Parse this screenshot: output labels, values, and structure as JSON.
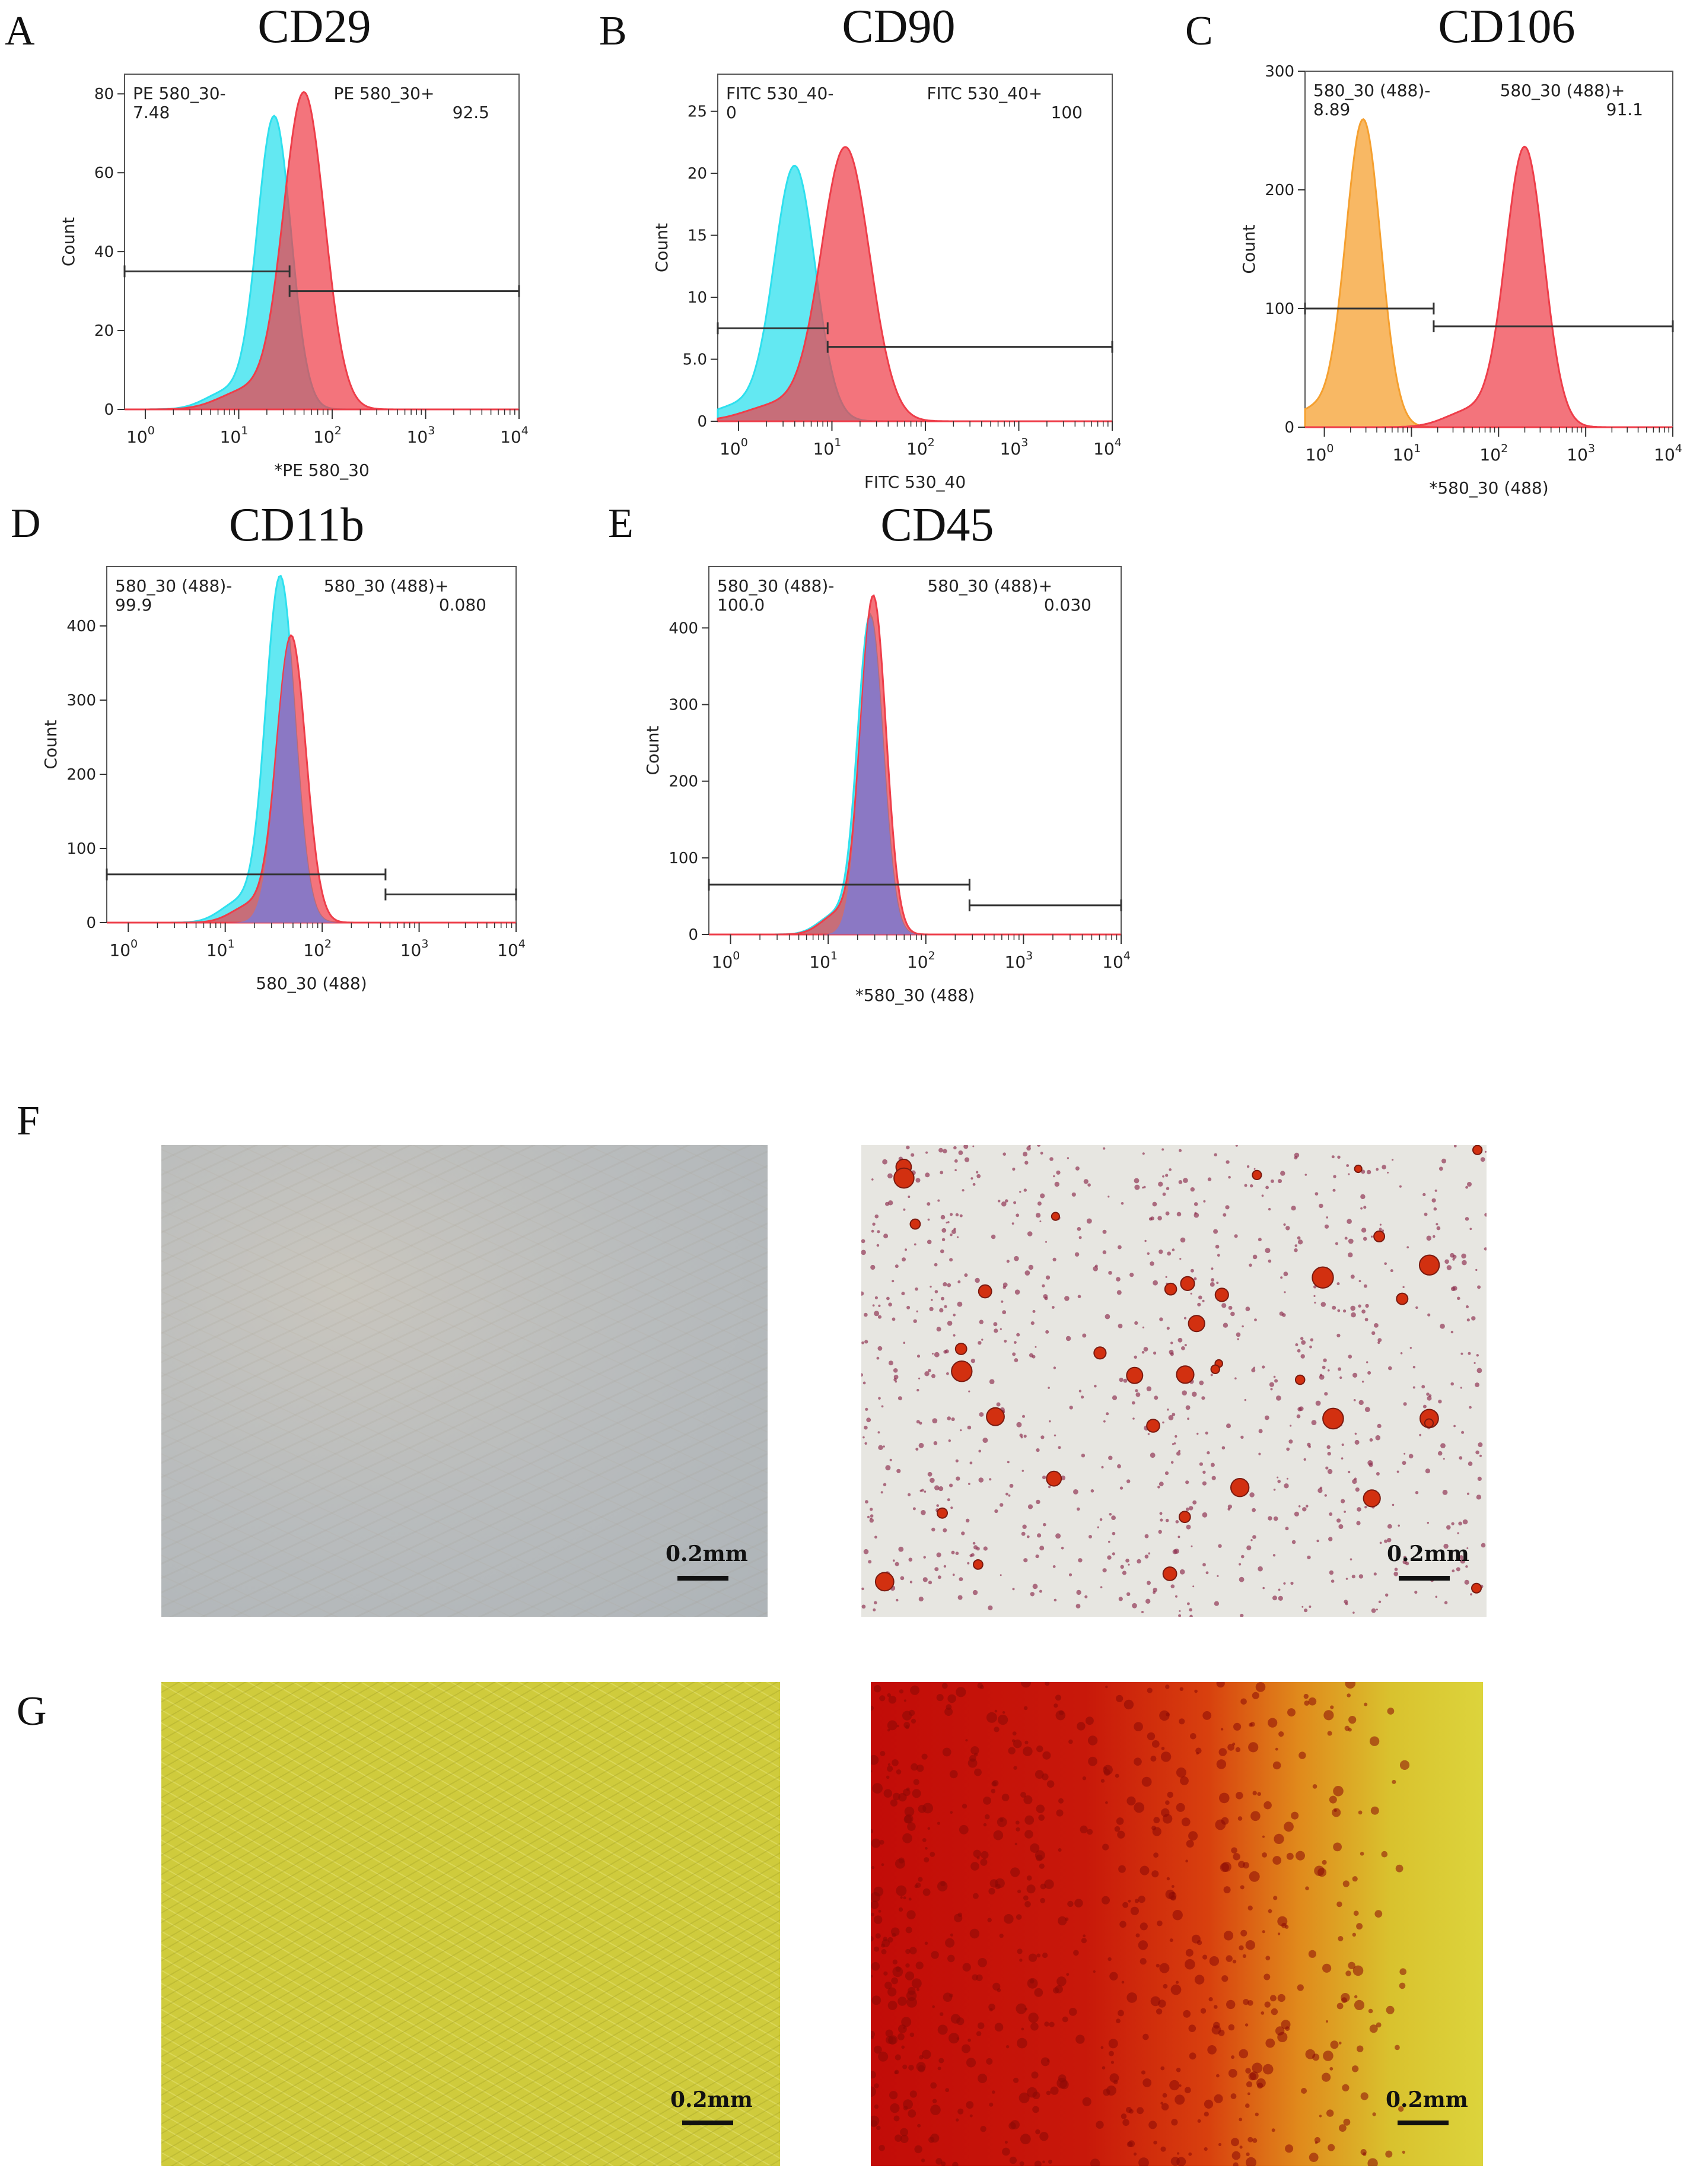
{
  "panels": [
    {
      "letter": "A",
      "title": "CD29",
      "neg_label": "PE 580_30-",
      "neg_value": "7.48",
      "pos_label": "PE 580_30+",
      "pos_value": "92.5",
      "xlabel": "*PE 580_30",
      "ylabel": "Count",
      "yticks": [
        "0",
        "20",
        "40",
        "60",
        "80"
      ]
    },
    {
      "letter": "B",
      "title": "CD90",
      "neg_label": "FITC 530_40-",
      "neg_value": "0",
      "pos_label": "FITC 530_40+",
      "pos_value": "100",
      "xlabel": "FITC 530_40",
      "ylabel": "Count",
      "yticks": [
        "0",
        "5.0",
        "10",
        "15",
        "20",
        "25"
      ]
    },
    {
      "letter": "C",
      "title": "CD106",
      "neg_label": "580_30 (488)-",
      "neg_value": "8.89",
      "pos_label": "580_30 (488)+",
      "pos_value": "91.1",
      "xlabel": "*580_30 (488)",
      "ylabel": "Count",
      "yticks": [
        "0",
        "100",
        "200",
        "300"
      ]
    },
    {
      "letter": "D",
      "title": "CD11b",
      "neg_label": "580_30 (488)-",
      "neg_value": "99.9",
      "pos_label": "580_30 (488)+",
      "pos_value": "0.080",
      "xlabel": "580_30 (488)",
      "ylabel": "Count",
      "yticks": [
        "0",
        "100",
        "200",
        "300",
        "400"
      ]
    },
    {
      "letter": "E",
      "title": "CD45",
      "neg_label": "580_30 (488)-",
      "neg_value": "100.0",
      "pos_label": "580_30 (488)+",
      "pos_value": "0.030",
      "xlabel": "*580_30 (488)",
      "ylabel": "Count",
      "yticks": [
        "0",
        "100",
        "200",
        "300",
        "400"
      ]
    }
  ],
  "xticks": [
    "10",
    "10",
    "10",
    "10",
    "10"
  ],
  "xtick_exponents": [
    "0",
    "1",
    "2",
    "3",
    "4"
  ],
  "figure_F": {
    "letter": "F",
    "scale_left": "0.2mm",
    "scale_right": "0.2mm"
  },
  "figure_G": {
    "letter": "G",
    "scale_left": "0.2mm",
    "scale_right": "0.2mm"
  },
  "colors": {
    "control_cyan": "#2fe0ee",
    "control_orange": "#f5a030",
    "stained_red": "#ee3e4a",
    "overlap": "#8878c8"
  },
  "chart_data": [
    {
      "type": "area",
      "title": "CD29",
      "xscale": "log",
      "xlim": [
        0.6,
        10000
      ],
      "ylim": [
        0,
        85
      ],
      "xlabel": "*PE 580_30",
      "ylabel": "Count",
      "series": [
        {
          "name": "",
          "color": "#2fe0ee",
          "peak_x": 24,
          "peak_y": 74,
          "spread_decades": 0.18
        },
        {
          "name": "",
          "color": "#ee3e4a",
          "peak_x": 50,
          "peak_y": 80,
          "spread_decades": 0.22
        }
      ],
      "gates": [
        {
          "name": "PE 580_30-",
          "x": [
            0.6,
            35
          ],
          "y": 35,
          "percent": 7.48
        },
        {
          "name": "PE 580_30+",
          "x": [
            35,
            10000
          ],
          "y": 30,
          "percent": 92.5
        }
      ]
    },
    {
      "type": "area",
      "title": "CD90",
      "xscale": "log",
      "xlim": [
        0.6,
        10000
      ],
      "ylim": [
        0,
        28
      ],
      "xlabel": "FITC 530_40",
      "ylabel": "Count",
      "series": [
        {
          "name": "",
          "color": "#2fe0ee",
          "peak_x": 4,
          "peak_y": 20.5,
          "spread_decades": 0.22
        },
        {
          "name": "",
          "color": "#ee3e4a",
          "peak_x": 14,
          "peak_y": 22,
          "spread_decades": 0.26
        }
      ],
      "gates": [
        {
          "name": "FITC 530_40-",
          "x": [
            0.6,
            9
          ],
          "y": 7.5,
          "percent": 0
        },
        {
          "name": "FITC 530_40+",
          "x": [
            9,
            10000
          ],
          "y": 6,
          "percent": 100
        }
      ]
    },
    {
      "type": "area",
      "title": "CD106",
      "xscale": "log",
      "xlim": [
        0.6,
        10000
      ],
      "ylim": [
        0,
        300
      ],
      "xlabel": "*580_30 (488)",
      "ylabel": "Count",
      "series": [
        {
          "name": "",
          "color": "#f5a030",
          "peak_x": 2.8,
          "peak_y": 258,
          "spread_decades": 0.2
        },
        {
          "name": "",
          "color": "#ee3e4a",
          "peak_x": 200,
          "peak_y": 235,
          "spread_decades": 0.22
        }
      ],
      "gates": [
        {
          "name": "580_30 (488)-",
          "x": [
            0.6,
            18
          ],
          "y": 100,
          "percent": 8.89
        },
        {
          "name": "580_30 (488)+",
          "x": [
            18,
            10000
          ],
          "y": 85,
          "percent": 91.1
        }
      ]
    },
    {
      "type": "area",
      "title": "CD11b",
      "xscale": "log",
      "xlim": [
        0.6,
        10000
      ],
      "ylim": [
        0,
        480
      ],
      "xlabel": "580_30 (488)",
      "ylabel": "Count",
      "series": [
        {
          "name": "",
          "color": "#2fe0ee",
          "peak_x": 37,
          "peak_y": 465,
          "spread_decades": 0.15
        },
        {
          "name": "",
          "color": "#ee3e4a",
          "peak_x": 48,
          "peak_y": 385,
          "spread_decades": 0.15
        }
      ],
      "gates": [
        {
          "name": "580_30 (488)-",
          "x": [
            0.6,
            450
          ],
          "y": 65,
          "percent": 99.9
        },
        {
          "name": "580_30 (488)+",
          "x": [
            450,
            10000
          ],
          "y": 38,
          "percent": 0.08
        }
      ]
    },
    {
      "type": "area",
      "title": "CD45",
      "xscale": "log",
      "xlim": [
        0.6,
        10000
      ],
      "ylim": [
        0,
        480
      ],
      "xlabel": "*580_30 (488)",
      "ylabel": "Count",
      "series": [
        {
          "name": "",
          "color": "#2fe0ee",
          "peak_x": 27,
          "peak_y": 415,
          "spread_decades": 0.13
        },
        {
          "name": "",
          "color": "#ee3e4a",
          "peak_x": 29,
          "peak_y": 440,
          "spread_decades": 0.13
        }
      ],
      "gates": [
        {
          "name": "580_30 (488)-",
          "x": [
            0.6,
            280
          ],
          "y": 65,
          "percent": 100.0
        },
        {
          "name": "580_30 (488)+",
          "x": [
            280,
            10000
          ],
          "y": 38,
          "percent": 0.03
        }
      ]
    }
  ]
}
